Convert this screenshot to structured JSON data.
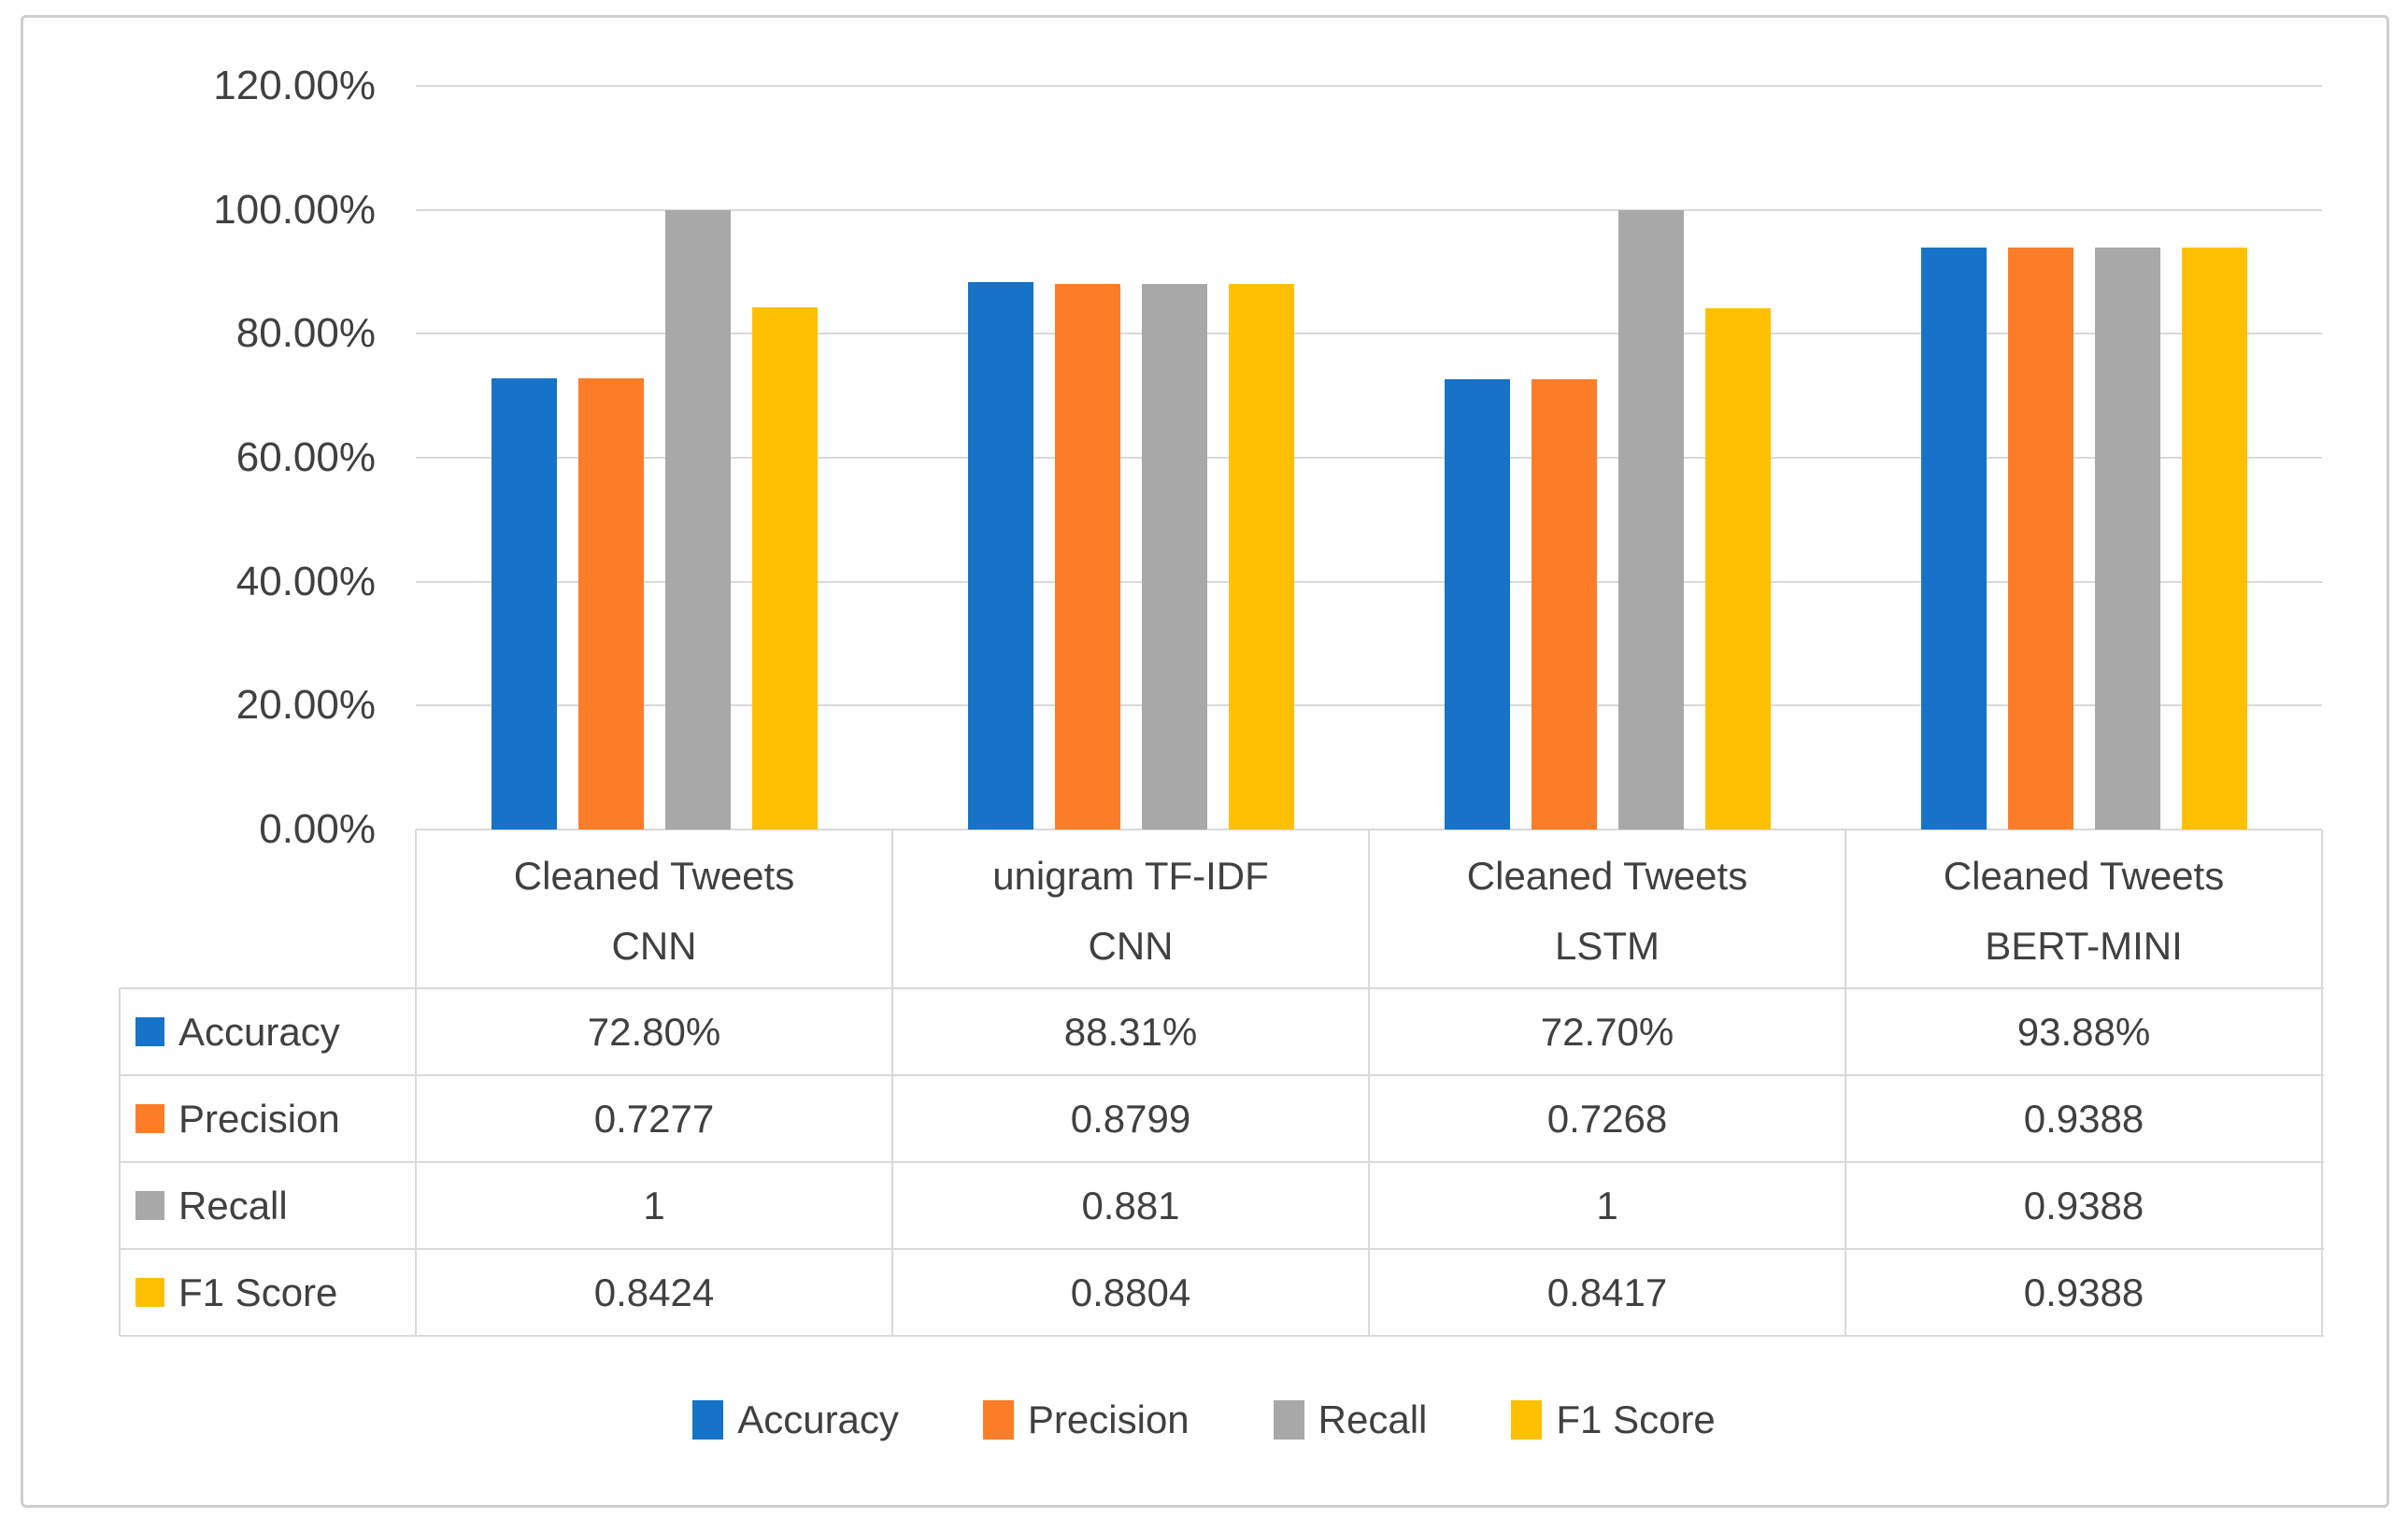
{
  "chart_data": {
    "type": "bar",
    "title": "",
    "grid": true,
    "legend_position": "bottom",
    "y_axis": {
      "min": 0,
      "max": 120,
      "step": 20,
      "tick_labels": [
        "0.00%",
        "20.00%",
        "40.00%",
        "60.00%",
        "80.00%",
        "100.00%",
        "120.00%"
      ]
    },
    "categories": [
      {
        "line1": "Cleaned Tweets",
        "line2": "CNN"
      },
      {
        "line1": "unigram TF-IDF",
        "line2": "CNN"
      },
      {
        "line1": "Cleaned Tweets",
        "line2": "LSTM"
      },
      {
        "line1": "Cleaned Tweets",
        "line2": "BERT-MINI"
      }
    ],
    "series": [
      {
        "name": "Accuracy",
        "color": "#1673c7",
        "values_pct": [
          72.8,
          88.31,
          72.7,
          93.88
        ],
        "table_display": [
          "72.80%",
          "88.31%",
          "72.70%",
          "93.88%"
        ]
      },
      {
        "name": "Precision",
        "color": "#fc7d28",
        "values_pct": [
          72.77,
          87.99,
          72.68,
          93.88
        ],
        "table_display": [
          "0.7277",
          "0.8799",
          "0.7268",
          "0.9388"
        ]
      },
      {
        "name": "Recall",
        "color": "#a8a8a8",
        "values_pct": [
          100,
          88.1,
          100,
          93.88
        ],
        "table_display": [
          "1",
          "0.881",
          "1",
          "0.9388"
        ]
      },
      {
        "name": "F1 Score",
        "color": "#ffc003",
        "values_pct": [
          84.24,
          88.04,
          84.17,
          93.88
        ],
        "table_display": [
          "0.8424",
          "0.8804",
          "0.8417",
          "0.9388"
        ]
      }
    ]
  },
  "colors": {
    "gridline": "#d9d9d9",
    "table_border": "#d9d9d9",
    "text": "#404040",
    "figure_border": "#cfcfcf"
  }
}
